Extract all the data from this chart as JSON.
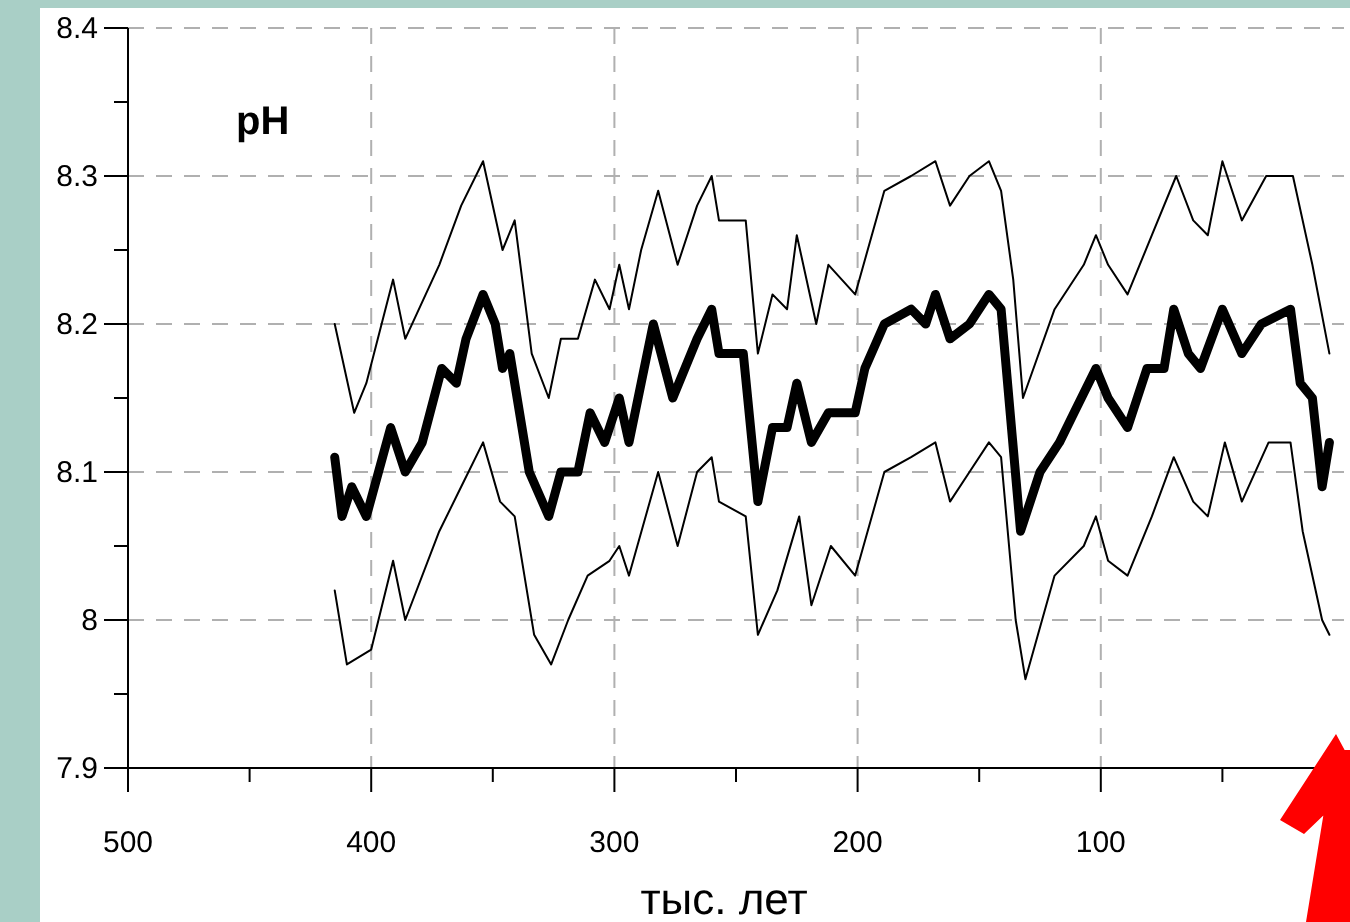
{
  "chart_data": {
    "type": "line",
    "ylabel": "pH",
    "xlabel": "тыс. лет",
    "xlim": [
      500,
      0
    ],
    "ylim": [
      7.9,
      8.4
    ],
    "xticks": [
      500,
      {
        "value": 450,
        "label": null
      },
      400,
      {
        "value": 350,
        "label": null
      },
      300,
      {
        "value": 250,
        "label": null
      },
      200,
      {
        "value": 150,
        "label": null
      },
      100,
      {
        "value": 50,
        "label": null
      }
    ],
    "yticks": [
      7.9,
      {
        "value": 7.95,
        "label": null
      },
      8,
      {
        "value": 8.05,
        "label": null
      },
      8.1,
      {
        "value": 8.15,
        "label": null
      },
      8.2,
      {
        "value": 8.25,
        "label": null
      },
      8.3,
      {
        "value": 8.35,
        "label": null
      },
      8.4
    ],
    "grid": true,
    "marker": "none",
    "line_style": "solid",
    "series": [
      {
        "color": "#000000",
        "x": [
          415,
          412,
          408,
          402,
          392,
          386,
          379,
          371,
          365,
          361,
          354,
          349,
          346,
          343,
          335,
          327,
          322,
          315,
          310,
          304,
          298,
          294,
          289,
          284,
          276,
          266,
          260,
          257,
          247,
          241,
          235,
          229,
          225,
          219,
          212,
          201,
          197,
          189,
          178,
          172,
          168,
          162,
          154,
          146,
          141,
          133,
          125,
          117,
          111,
          102,
          97,
          89,
          81,
          74,
          70,
          64,
          59,
          50,
          42,
          34,
          22,
          18,
          13,
          9,
          6
        ],
        "values": [
          8.11,
          8.07,
          8.09,
          8.07,
          8.13,
          8.1,
          8.12,
          8.17,
          8.16,
          8.19,
          8.22,
          8.2,
          8.17,
          8.18,
          8.1,
          8.07,
          8.1,
          8.1,
          8.14,
          8.12,
          8.15,
          8.12,
          8.16,
          8.2,
          8.15,
          8.19,
          8.21,
          8.18,
          8.18,
          8.08,
          8.13,
          8.13,
          8.16,
          8.12,
          8.14,
          8.14,
          8.17,
          8.2,
          8.21,
          8.2,
          8.22,
          8.19,
          8.2,
          8.22,
          8.21,
          8.06,
          8.1,
          8.12,
          8.14,
          8.17,
          8.15,
          8.13,
          8.17,
          8.17,
          8.21,
          8.18,
          8.17,
          8.21,
          8.18,
          8.2,
          8.21,
          8.16,
          8.15,
          8.09,
          8.12
        ]
      },
      {
        "color": "#000000",
        "x": [
          415,
          407,
          402,
          391,
          386,
          372,
          363,
          354,
          346,
          341,
          334,
          327,
          322,
          315,
          308,
          302,
          298,
          294,
          289,
          282,
          274,
          266,
          260,
          257,
          246,
          241,
          235,
          229,
          225,
          217,
          212,
          201,
          189,
          178,
          168,
          162,
          154,
          146,
          141,
          136,
          132,
          119,
          107,
          102,
          97,
          89,
          79,
          69,
          62,
          56,
          50,
          42,
          32,
          21,
          13,
          6
        ],
        "values": [
          8.2,
          8.14,
          8.16,
          8.23,
          8.19,
          8.24,
          8.28,
          8.31,
          8.25,
          8.27,
          8.18,
          8.15,
          8.19,
          8.19,
          8.23,
          8.21,
          8.24,
          8.21,
          8.25,
          8.29,
          8.24,
          8.28,
          8.3,
          8.27,
          8.27,
          8.18,
          8.22,
          8.21,
          8.26,
          8.2,
          8.24,
          8.22,
          8.29,
          8.3,
          8.31,
          8.28,
          8.3,
          8.31,
          8.29,
          8.23,
          8.15,
          8.21,
          8.24,
          8.26,
          8.24,
          8.22,
          8.26,
          8.3,
          8.27,
          8.26,
          8.31,
          8.27,
          8.3,
          8.3,
          8.24,
          8.18
        ]
      },
      {
        "color": "#000000",
        "x": [
          415,
          410,
          400,
          391,
          386,
          372,
          363,
          354,
          347,
          341,
          333,
          326,
          319,
          311,
          302,
          298,
          294,
          282,
          274,
          266,
          260,
          257,
          246,
          241,
          233,
          224,
          219,
          211,
          201,
          189,
          178,
          168,
          162,
          154,
          146,
          141,
          135,
          131,
          119,
          107,
          102,
          97,
          89,
          79,
          70,
          62,
          56,
          49,
          42,
          31,
          22,
          17,
          9,
          6
        ],
        "values": [
          8.02,
          7.97,
          7.98,
          8.04,
          8,
          8.06,
          8.09,
          8.12,
          8.08,
          8.07,
          7.99,
          7.97,
          8,
          8.03,
          8.04,
          8.05,
          8.03,
          8.1,
          8.05,
          8.1,
          8.11,
          8.08,
          8.07,
          7.99,
          8.02,
          8.07,
          8.01,
          8.05,
          8.03,
          8.1,
          8.11,
          8.12,
          8.08,
          8.1,
          8.12,
          8.11,
          8,
          7.96,
          8.03,
          8.05,
          8.07,
          8.04,
          8.03,
          8.07,
          8.11,
          8.08,
          8.07,
          8.12,
          8.08,
          8.12,
          8.12,
          8.06,
          8,
          7.99
        ]
      }
    ]
  }
}
